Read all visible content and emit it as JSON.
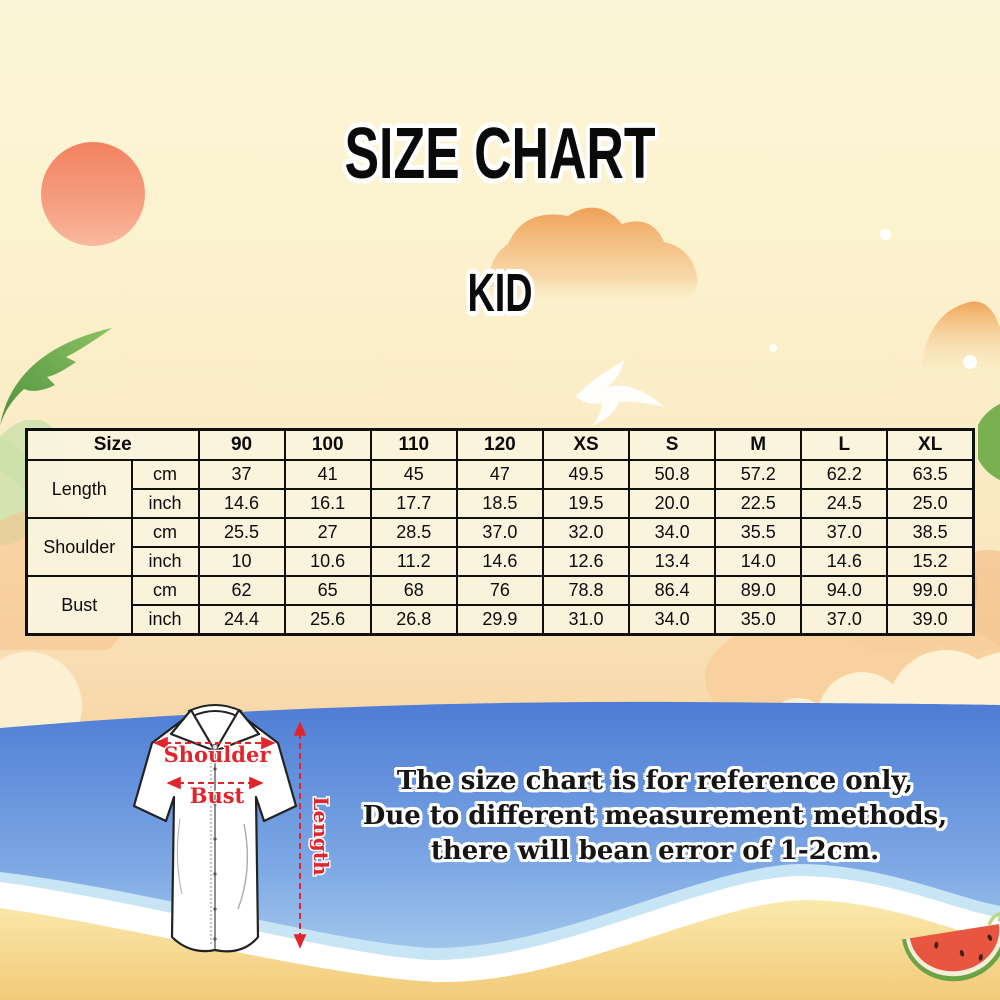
{
  "title": "SIZE CHART",
  "subtitle": "KID",
  "chart_data": {
    "type": "table",
    "title": "SIZE CHART",
    "subtitle": "KID",
    "columns": [
      "Size",
      "90",
      "100",
      "110",
      "120",
      "XS",
      "S",
      "M",
      "L",
      "XL"
    ],
    "rows": [
      {
        "measurement": "Length",
        "unit": "cm",
        "values": [
          "37",
          "41",
          "45",
          "47",
          "49.5",
          "50.8",
          "57.2",
          "62.2",
          "63.5"
        ]
      },
      {
        "measurement": "Length",
        "unit": "inch",
        "values": [
          "14.6",
          "16.1",
          "17.7",
          "18.5",
          "19.5",
          "20.0",
          "22.5",
          "24.5",
          "25.0"
        ]
      },
      {
        "measurement": "Shoulder",
        "unit": "cm",
        "values": [
          "25.5",
          "27",
          "28.5",
          "37.0",
          "32.0",
          "34.0",
          "35.5",
          "37.0",
          "38.5"
        ]
      },
      {
        "measurement": "Shoulder",
        "unit": "inch",
        "values": [
          "10",
          "10.6",
          "11.2",
          "14.6",
          "12.6",
          "13.4",
          "14.0",
          "14.6",
          "15.2"
        ]
      },
      {
        "measurement": "Bust",
        "unit": "cm",
        "values": [
          "62",
          "65",
          "68",
          "76",
          "78.8",
          "86.4",
          "89.0",
          "94.0",
          "99.0"
        ]
      },
      {
        "measurement": "Bust",
        "unit": "inch",
        "values": [
          "24.4",
          "25.6",
          "26.8",
          "29.9",
          "31.0",
          "34.0",
          "35.0",
          "37.0",
          "39.0"
        ]
      }
    ]
  },
  "diagram": {
    "shoulder_label": "Shoulder",
    "bust_label": "Bust",
    "length_label": "Length",
    "arrow_color": "#e0262c"
  },
  "note": {
    "line1": "The size chart is for reference only,",
    "line2": "Due to different measurement methods,",
    "line3": "there will bean error of 1-2cm."
  },
  "scene": {
    "icons": [
      "sun-icon",
      "palm-leaf-icon",
      "cloud-icon",
      "bird-icon",
      "sparkle-icon",
      "bush-icon",
      "watermelon-icon",
      "shirt-diagram"
    ],
    "colors": {
      "sky_top": "#fcf6d8",
      "sunset_band": "#f6d2a0",
      "sun": "#f28260",
      "ocean": "#4e7cd5",
      "foam": "#ffffff",
      "sand": "#f3cd7d",
      "leaf_green": "#6fae4d",
      "accent_red": "#e0262c",
      "table_border": "#0f0f0f"
    }
  }
}
